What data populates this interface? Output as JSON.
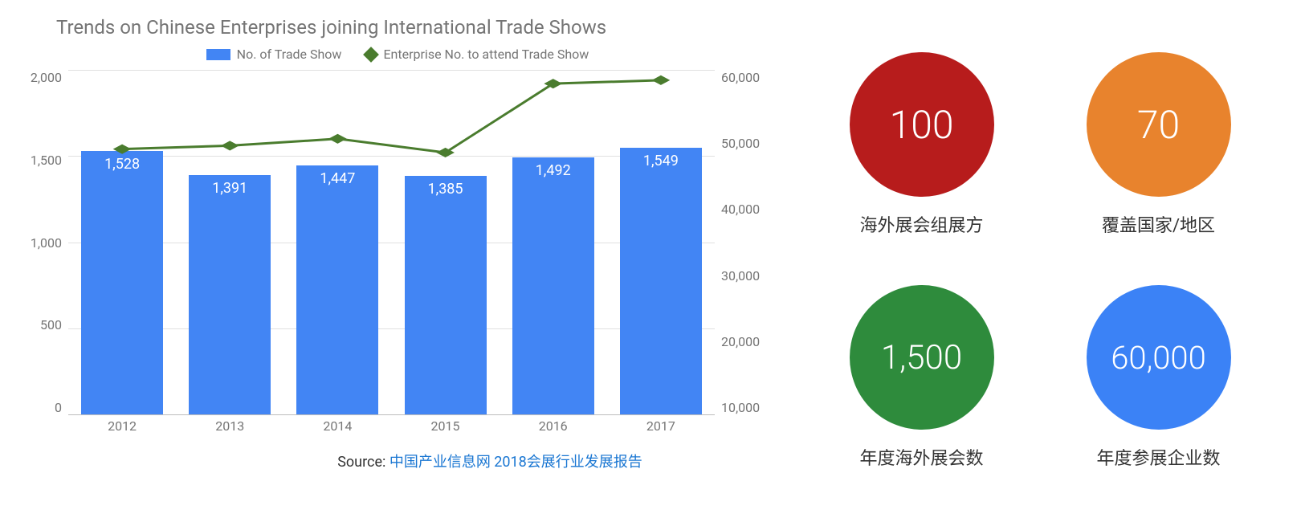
{
  "chart": {
    "type": "bar+line",
    "title": "Trends on Chinese Enterprises joining International Trade Shows",
    "title_color": "#757575",
    "title_fontsize": 24,
    "legend": {
      "bar": {
        "label": "No. of Trade Show",
        "color": "#4285f4"
      },
      "line": {
        "label": "Enterprise No. to attend Trade Show",
        "color": "#4a7c2e"
      }
    },
    "categories": [
      "2012",
      "2013",
      "2014",
      "2015",
      "2016",
      "2017"
    ],
    "bar_values": [
      1528,
      1391,
      1447,
      1385,
      1492,
      1549
    ],
    "bar_labels": [
      "1,528",
      "1,391",
      "1,447",
      "1,385",
      "1,492",
      "1,549"
    ],
    "bar_color": "#4285f4",
    "bar_width_pct": 76,
    "line_values": [
      48500,
      49000,
      50000,
      48000,
      58000,
      58500
    ],
    "line_color": "#4a7c2e",
    "line_width": 3,
    "marker_size": 12,
    "y_left": {
      "min": 0,
      "max": 2000,
      "step": 500,
      "ticks": [
        "2,000",
        "1,500",
        "1,000",
        "500",
        "0"
      ]
    },
    "y_right": {
      "min": 10000,
      "max": 60000,
      "step": 10000,
      "ticks": [
        "60,000",
        "50,000",
        "40,000",
        "30,000",
        "20,000",
        "10,000"
      ]
    },
    "grid_color": "#e0e0e0",
    "axis_text_color": "#757575",
    "background_color": "#ffffff",
    "source_prefix": "Source: ",
    "source_link": "中国产业信息网 2018会展行业发展报告",
    "source_link_color": "#1976d2"
  },
  "kpis": [
    {
      "value": "100",
      "label": "海外展会组展方",
      "color": "#b71c1c",
      "diameter": 180,
      "fontsize": 48
    },
    {
      "value": "70",
      "label": "覆盖国家/地区",
      "color": "#e8832d",
      "diameter": 180,
      "fontsize": 48
    },
    {
      "value": "1,500",
      "label": "年度海外展会数",
      "color": "#2e8b3c",
      "diameter": 180,
      "fontsize": 42
    },
    {
      "value": "60,000",
      "label": "年度参展企业数",
      "color": "#3b82f6",
      "diameter": 180,
      "fontsize": 40
    }
  ]
}
